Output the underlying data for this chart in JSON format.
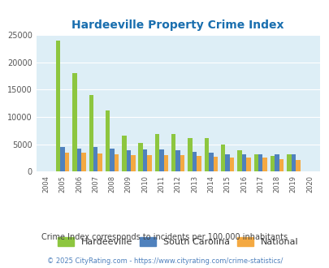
{
  "title": "Hardeeville Property Crime Index",
  "title_color": "#1a6faf",
  "years": [
    2004,
    2005,
    2006,
    2007,
    2008,
    2009,
    2010,
    2011,
    2012,
    2013,
    2014,
    2015,
    2016,
    2017,
    2018,
    2019,
    2020
  ],
  "hardeeville": [
    0,
    24000,
    18000,
    14000,
    11100,
    6500,
    5300,
    6900,
    6800,
    6100,
    6100,
    4900,
    3900,
    3200,
    2900,
    3100,
    0
  ],
  "south_carolina": [
    0,
    4500,
    4200,
    4500,
    4200,
    3900,
    4000,
    4000,
    3900,
    3600,
    3500,
    3200,
    3200,
    3200,
    3100,
    3100,
    0
  ],
  "national": [
    0,
    3500,
    3500,
    3300,
    3200,
    3000,
    3000,
    3000,
    3000,
    2900,
    2700,
    2500,
    2500,
    2500,
    2300,
    2100,
    0
  ],
  "bar_colors": {
    "hardeeville": "#8dc63f",
    "south_carolina": "#4f81bd",
    "national": "#f4a942"
  },
  "ylim": [
    0,
    25000
  ],
  "yticks": [
    0,
    5000,
    10000,
    15000,
    20000,
    25000
  ],
  "plot_bg": "#ddeef6",
  "grid_color": "#ffffff",
  "subtitle": "Crime Index corresponds to incidents per 100,000 inhabitants",
  "footer": "© 2025 CityRating.com - https://www.cityrating.com/crime-statistics/",
  "footer_color": "#4f81bd",
  "legend_labels": [
    "Hardeeville",
    "South Carolina",
    "National"
  ],
  "bar_width": 0.27
}
